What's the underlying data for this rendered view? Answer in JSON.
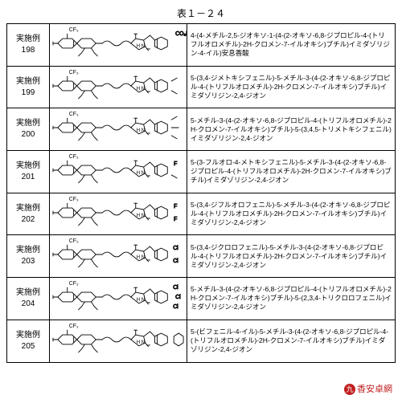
{
  "table_title": "表１－２４",
  "id_label": "実施例",
  "rows": [
    {
      "num": "198",
      "name": "4-(4-メチル-2,5-ジオキソ-1-(4-(2-オキソ-6,8-ジプロピル-4-(トリフルオロメチル)-2H-クロメン-7-イルオキシ)ブチル)イミダゾリジン-4-イル)安息香酸"
    },
    {
      "num": "199",
      "name": "5-(3,4-ジメトキシフェニル)-5-メチル-3-(4-(2-オキソ-6,8-ジプロピル-4-(トリフルオロメチル)-2H-クロメン-7-イルオキシ)ブチル)イミダゾリジン-2,4-ジオン"
    },
    {
      "num": "200",
      "name": "5-メチル-3-(4-(2-オキソ-6,8-ジプロピル-4-(トリフルオロメチル)-2H-クロメン-7-イルオキシ)ブチル)-5-(3,4,5-トリメトキシフェニル)イミダゾリジン-2,4-ジオン"
    },
    {
      "num": "201",
      "name": "5-(3-フルオロ-4-メトキシフェニル)-5-メチル-3-(4-(2-オキソ-6,8-ジプロピル-4-(トリフルオロメチル)-2H-クロメン-7-イルオキシ)ブチル)イミダゾリジン-2,4-ジオン"
    },
    {
      "num": "202",
      "name": "5-(3,4-ジフルオロフェニル)-5-メチル-3-(4-(2-オキソ-6,8-ジプロピル-4-(トリフルオロメチル)-2H-クロメン-7-イルオキシ)ブチル)イミダゾリジン-2,4-ジオン"
    },
    {
      "num": "203",
      "name": "5-(3,4-ジクロロフェニル)-5-メチル-3-(4-(2-オキソ-6,8-ジプロピル-4-(トリフルオロメチル)-2H-クロメン-7-イルオキシ)ブチル)イミダゾリジン-2,4-ジオン"
    },
    {
      "num": "204",
      "name": "5-メチル-3-(4-(2-オキソ-6,8-ジプロピル-4-(トリフルオロメチル)-2H-クロメン-7-イルオキシ)ブチル)-5-(2,3,4-トリクロロフェニル)イミダゾリジン-2,4-ジオン"
    },
    {
      "num": "205",
      "name": "5-(ビフェニル-4-イル)-5-メチル-3-(4-(2-オキソ-6,8-ジプロピル-4-(トリフルオロメチル)-2H-クロメン-7-イルオキシ)ブチル)イミダゾリジン-2,4-ジオン"
    }
  ],
  "watermark": {
    "badge": "九",
    "text": "香安卓網"
  },
  "structure_labels": {
    "cf3": "CF₃",
    "cl": "Cl",
    "f": "F",
    "co2h": "CO₂H"
  },
  "style": {
    "stroke": "#000000",
    "stroke_width": 0.9,
    "background": "#ffffff",
    "font_size_labels": 7
  }
}
